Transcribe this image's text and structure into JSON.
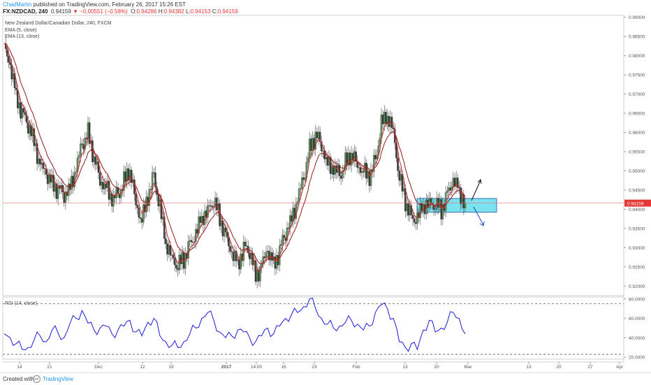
{
  "header": {
    "author": "ChadMartin",
    "published_text": "published on TradingView.com, February 26, 2017 15:26 EST",
    "symbol": "FX:NZDCAD, 240",
    "last": "0.94159",
    "change": "−0.00551 (−0.58%)",
    "o_label": "O:",
    "o_value": "0.94286",
    "h_label": "H:",
    "h_value": "0.94382",
    "l_label": "L:",
    "l_value": "0.94153",
    "c_label": "C:",
    "c_value": "0.94159"
  },
  "legend": {
    "title": "New Zealand Dollar/Canadian Dollar, 240, FXCM",
    "ema5": "EMA (5, close)",
    "ema13": "EMA (13, close)",
    "rsi": "RSI (14, close)"
  },
  "footer": {
    "created_with": "Created with",
    "brand": "TradingView"
  },
  "colors": {
    "ema": "#c62828",
    "rsi": "#1a1adb",
    "zone": "#7be3f0",
    "zone_border": "#1f4fa0",
    "price_line": "#e57373",
    "price_tag": "#e53935",
    "candle_up": "#5a8f5a",
    "candle_down": "#3a3a3a"
  },
  "chart_data": [
    {
      "type": "candlestick",
      "title": "New Zealand Dollar/Canadian Dollar, 240, FXCM",
      "ylim": [
        0.9175,
        0.9905
      ],
      "y_ticks": [
        "0.99000",
        "0.98500",
        "0.98000",
        "0.97500",
        "0.97000",
        "0.96500",
        "0.96000",
        "0.95500",
        "0.95000",
        "0.94500",
        "0.94000",
        "0.93500",
        "0.93000",
        "0.92500",
        "0.92000"
      ],
      "x_ticks": [
        "14",
        "21",
        "Dec",
        "12",
        "19",
        "2017",
        "14:00",
        "16",
        "23",
        "Feb",
        "13",
        "20",
        "Mar",
        "13",
        "20",
        "27",
        "Apr"
      ],
      "last_price": "0.94159",
      "close_path": [
        [
          "Nov 13",
          0.982
        ],
        [
          "Nov 14",
          0.977
        ],
        [
          "Nov 15",
          0.97
        ],
        [
          "Nov 16",
          0.965
        ],
        [
          "Nov 17",
          0.962
        ],
        [
          "Nov 18",
          0.958
        ],
        [
          "Nov 21",
          0.951
        ],
        [
          "Nov 22",
          0.949
        ],
        [
          "Nov 23",
          0.947
        ],
        [
          "Nov 24",
          0.945
        ],
        [
          "Nov 25",
          0.944
        ],
        [
          "Nov 28",
          0.946
        ],
        [
          "Nov 29",
          0.95
        ],
        [
          "Nov 30",
          0.957
        ],
        [
          "Dec 1",
          0.96
        ],
        [
          "Dec 2",
          0.953
        ],
        [
          "Dec 5",
          0.948
        ],
        [
          "Dec 6",
          0.946
        ],
        [
          "Dec 7",
          0.942
        ],
        [
          "Dec 8",
          0.944
        ],
        [
          "Dec 9",
          0.947
        ],
        [
          "Dec 12",
          0.95
        ],
        [
          "Dec 13",
          0.942
        ],
        [
          "Dec 14",
          0.937
        ],
        [
          "Dec 15",
          0.943
        ],
        [
          "Dec 16",
          0.949
        ],
        [
          "Dec 19",
          0.94
        ],
        [
          "Dec 20",
          0.931
        ],
        [
          "Dec 21",
          0.928
        ],
        [
          "Dec 22",
          0.925
        ],
        [
          "Dec 23",
          0.927
        ],
        [
          "Dec 26",
          0.931
        ],
        [
          "Dec 27",
          0.933
        ],
        [
          "Dec 28",
          0.938
        ],
        [
          "Dec 29",
          0.94
        ],
        [
          "Dec 30",
          0.942
        ],
        [
          "Jan 2",
          0.938
        ],
        [
          "Jan 3",
          0.933
        ],
        [
          "Jan 4",
          0.928
        ],
        [
          "Jan 5",
          0.926
        ],
        [
          "Jan 6",
          0.93
        ],
        [
          "Jan 9",
          0.929
        ],
        [
          "Jan 10",
          0.923
        ],
        [
          "Jan 11",
          0.925
        ],
        [
          "Jan 12",
          0.929
        ],
        [
          "Jan 13",
          0.926
        ],
        [
          "Jan 16",
          0.929
        ],
        [
          "Jan 17",
          0.934
        ],
        [
          "Jan 18",
          0.938
        ],
        [
          "Jan 19",
          0.942
        ],
        [
          "Jan 20",
          0.948
        ],
        [
          "Jan 23",
          0.956
        ],
        [
          "Jan 24",
          0.959
        ],
        [
          "Jan 25",
          0.957
        ],
        [
          "Jan 26",
          0.952
        ],
        [
          "Jan 27",
          0.95
        ],
        [
          "Jan 30",
          0.949
        ],
        [
          "Jan 31",
          0.952
        ],
        [
          "Feb 1",
          0.954
        ],
        [
          "Feb 2",
          0.952
        ],
        [
          "Feb 3",
          0.95
        ],
        [
          "Feb 6",
          0.948
        ],
        [
          "Feb 7",
          0.953
        ],
        [
          "Feb 8",
          0.962
        ],
        [
          "Feb 9",
          0.964
        ],
        [
          "Feb 10",
          0.961
        ],
        [
          "Feb 13",
          0.948
        ],
        [
          "Feb 14",
          0.942
        ],
        [
          "Feb 15",
          0.938
        ],
        [
          "Feb 16",
          0.937
        ],
        [
          "Feb 17",
          0.941
        ],
        [
          "Feb 20",
          0.942
        ],
        [
          "Feb 21",
          0.941
        ],
        [
          "Feb 22",
          0.94
        ],
        [
          "Feb 23",
          0.944
        ],
        [
          "Feb 24",
          0.947
        ],
        [
          "Feb 24b",
          0.945
        ],
        [
          "Feb 26",
          0.9416
        ]
      ],
      "series": [
        {
          "name": "EMA (5, close)",
          "kind": "line"
        },
        {
          "name": "EMA (13, close)",
          "kind": "line"
        }
      ],
      "annotations": {
        "zone": {
          "y_top": 0.9428,
          "y_bottom": 0.9392
        },
        "arrows": [
          "up",
          "down"
        ]
      }
    },
    {
      "type": "line",
      "title": "RSI (14, close)",
      "ylim": [
        18,
        82
      ],
      "y_ticks": [
        "80.0000",
        "60.0000",
        "40.0000",
        "20.0000"
      ],
      "reference_lines": [
        75,
        23
      ],
      "x": [
        "Nov 13",
        "Nov 14",
        "Nov 15",
        "Nov 16",
        "Nov 17",
        "Nov 18",
        "Nov 21",
        "Nov 22",
        "Nov 23",
        "Nov 24",
        "Nov 25",
        "Nov 28",
        "Nov 29",
        "Nov 30",
        "Dec 1",
        "Dec 2",
        "Dec 5",
        "Dec 6",
        "Dec 7",
        "Dec 8",
        "Dec 9",
        "Dec 12",
        "Dec 13",
        "Dec 14",
        "Dec 15",
        "Dec 16",
        "Dec 19",
        "Dec 20",
        "Dec 21",
        "Dec 22",
        "Dec 23",
        "Dec 26",
        "Dec 27",
        "Dec 28",
        "Dec 29",
        "Dec 30",
        "Jan 2",
        "Jan 3",
        "Jan 4",
        "Jan 5",
        "Jan 6",
        "Jan 9",
        "Jan 10",
        "Jan 11",
        "Jan 12",
        "Jan 13",
        "Jan 16",
        "Jan 17",
        "Jan 18",
        "Jan 19",
        "Jan 20",
        "Jan 23",
        "Jan 24",
        "Jan 25",
        "Jan 26",
        "Jan 27",
        "Jan 30",
        "Jan 31",
        "Feb 1",
        "Feb 2",
        "Feb 3",
        "Feb 6",
        "Feb 7",
        "Feb 8",
        "Feb 9",
        "Feb 10",
        "Feb 13",
        "Feb 14",
        "Feb 15",
        "Feb 16",
        "Feb 17",
        "Feb 20",
        "Feb 21",
        "Feb 22",
        "Feb 23",
        "Feb 24",
        "Feb 24b",
        "Feb 26"
      ],
      "values": [
        44,
        40,
        34,
        28,
        30,
        38,
        42,
        36,
        48,
        45,
        40,
        55,
        60,
        68,
        55,
        48,
        50,
        52,
        44,
        48,
        52,
        58,
        46,
        42,
        56,
        60,
        42,
        36,
        32,
        30,
        36,
        44,
        50,
        60,
        66,
        58,
        46,
        40,
        42,
        48,
        46,
        40,
        36,
        42,
        50,
        44,
        52,
        60,
        64,
        66,
        72,
        80,
        70,
        60,
        54,
        50,
        52,
        56,
        58,
        54,
        48,
        52,
        66,
        74,
        70,
        60,
        36,
        30,
        34,
        28,
        48,
        58,
        46,
        50,
        56,
        66,
        60,
        44
      ]
    }
  ]
}
